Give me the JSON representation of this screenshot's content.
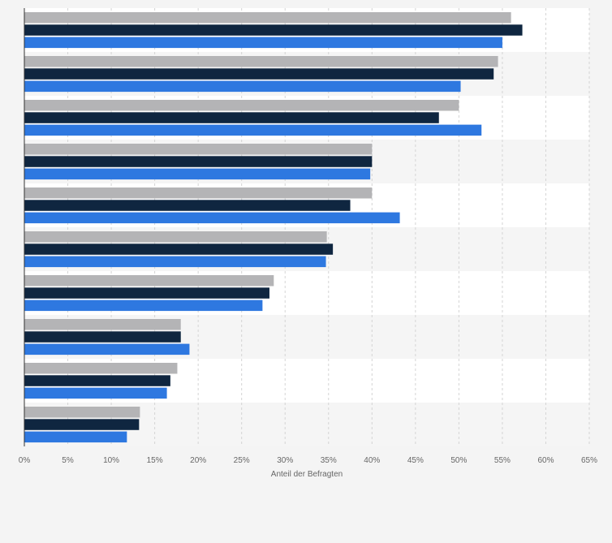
{
  "chart_data": {
    "type": "bar",
    "orientation": "horizontal",
    "xlabel": "Anteil der Befragten",
    "ylabel": "",
    "xlim": [
      0,
      65
    ],
    "x_ticks": [
      0,
      5,
      10,
      15,
      20,
      25,
      30,
      35,
      40,
      45,
      50,
      55,
      60,
      65
    ],
    "x_tick_labels": [
      "0%",
      "5%",
      "10%",
      "15%",
      "20%",
      "25%",
      "30%",
      "35%",
      "40%",
      "45%",
      "50%",
      "55%",
      "60%",
      "65%"
    ],
    "grid": "vertical dashed",
    "category_labels_visible": false,
    "legend_visible": false,
    "num_categories": 10,
    "series": [
      {
        "color": "#b4b4b6",
        "values": [
          56,
          54.5,
          50,
          40,
          40,
          34.8,
          28.7,
          18,
          17.6,
          13.3
        ]
      },
      {
        "color": "#0f2640",
        "values": [
          57.3,
          54,
          47.7,
          40,
          37.5,
          35.5,
          28.2,
          18,
          16.8,
          13.2
        ]
      },
      {
        "color": "#2e78e0",
        "values": [
          55,
          50.2,
          52.6,
          39.8,
          43.2,
          34.7,
          27.4,
          19,
          16.4,
          11.8
        ]
      }
    ]
  }
}
